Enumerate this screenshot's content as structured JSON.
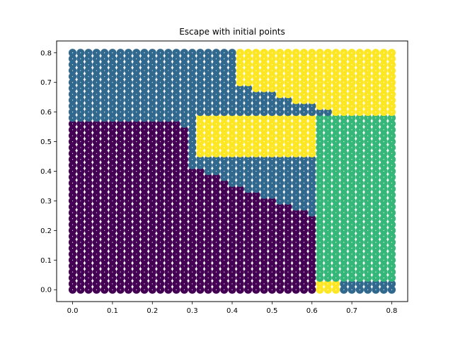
{
  "chart_data": {
    "type": "scatter",
    "title": "Escape with initial points",
    "xlabel": "",
    "ylabel": "",
    "xlim": [
      -0.04,
      0.84
    ],
    "ylim": [
      -0.04,
      0.84
    ],
    "x_ticks": [
      "0.0",
      "0.1",
      "0.2",
      "0.3",
      "0.4",
      "0.5",
      "0.6",
      "0.7",
      "0.8"
    ],
    "y_ticks": [
      "0.0",
      "0.1",
      "0.2",
      "0.3",
      "0.4",
      "0.5",
      "0.6",
      "0.7",
      "0.8"
    ],
    "grid": false,
    "legend": "none",
    "grid_points": {
      "x_start": 0.0,
      "x_end": 0.8,
      "x_step": 0.02,
      "y_start": 0.0,
      "y_end": 0.8,
      "y_step": 0.02
    },
    "categories": [
      0,
      1,
      2,
      3
    ],
    "colors": {
      "0": "#440154",
      "1": "#31688e",
      "2": "#35b779",
      "3": "#fde725"
    },
    "regions": {
      "region_0_dark_purple": "lower-left, below about y=0.58 and left of the diagonal boundary to x≈0.6 at y=0",
      "region_1_blue": "top band above y≈0.58 from x=0 to ≈0.45, plus thin diagonal band through upper right",
      "region_2_green": "right side, x≳0.62 and y≲0.63",
      "region_3_yellow": "upper-right wedge between x≈0.3–0.8 and y≈0.45–0.8"
    },
    "marker_interior_color": "#ffffff"
  }
}
